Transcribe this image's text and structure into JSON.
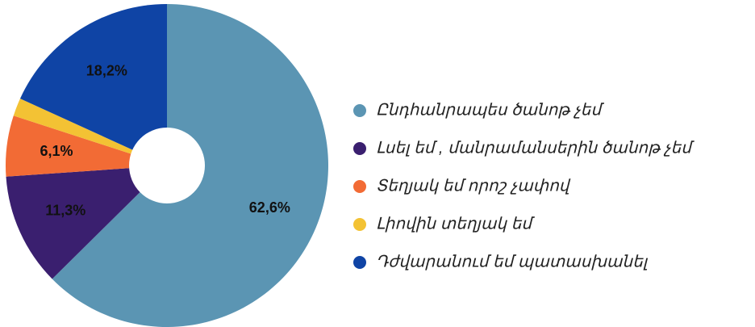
{
  "chart_data": {
    "type": "pie",
    "categories": [
      "Ընդհանրապես ծանոթ չեմ",
      "Լսել եմ , մանրամանսերին ծանոթ չեմ",
      "Տեղյակ եմ որոշ չափով",
      "Լիովին տեղյակ եմ",
      "Դժվարանում եմ պատասխանել"
    ],
    "values": [
      62.6,
      11.3,
      6.1,
      1.8,
      18.2
    ],
    "value_labels": [
      "62,6%",
      "11,3%",
      "6,1%",
      null,
      "18,2%"
    ],
    "colors": [
      "#5b95b3",
      "#3a1f6f",
      "#f26b35",
      "#f3c234",
      "#0f44a5"
    ],
    "legend": "right"
  }
}
